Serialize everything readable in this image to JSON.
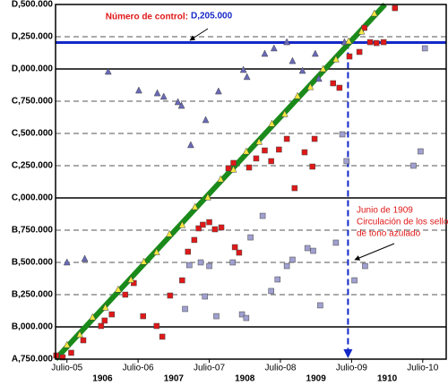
{
  "chart_data": {
    "type": "scatter",
    "xlim": [
      1905.34,
      1910.83
    ],
    "ylim": [
      750000,
      3500000
    ],
    "yticks": [
      {
        "value": 750000,
        "label": "A,750.000"
      },
      {
        "value": 1000000,
        "label": "B,000.000"
      },
      {
        "value": 1250000,
        "label": "B,250.000"
      },
      {
        "value": 1500000,
        "label": "B,500.000"
      },
      {
        "value": 1750000,
        "label": "B,750.000"
      },
      {
        "value": 2000000,
        "label": "C,000.000"
      },
      {
        "value": 2250000,
        "label": "C,250.000"
      },
      {
        "value": 2500000,
        "label": "C,500.000"
      },
      {
        "value": 2750000,
        "label": "C,750.000"
      },
      {
        "value": 3000000,
        "label": "D,000.000"
      },
      {
        "value": 3250000,
        "label": "D,250.000"
      },
      {
        "value": 3500000,
        "label": "D,500.000"
      }
    ],
    "xticks": [
      {
        "value": 1905.5,
        "label": "Julio-05"
      },
      {
        "value": 1906.5,
        "label": "Julio-06"
      },
      {
        "value": 1907.5,
        "label": "Julio-07"
      },
      {
        "value": 1908.5,
        "label": "Julio-08"
      },
      {
        "value": 1909.5,
        "label": "Julio-09"
      },
      {
        "value": 1910.5,
        "label": "Julio-10"
      }
    ],
    "year_labels": [
      1906,
      1907,
      1908,
      1909,
      1910
    ],
    "grid": true,
    "series": [
      {
        "marker": "triangle",
        "color": "#6a6ab8",
        "x": [
          1905.5,
          1905.75,
          1906.08,
          1906.51,
          1906.77,
          1906.86,
          1907.06,
          1907.11,
          1907.24,
          1907.45,
          1907.63,
          1907.98,
          1908.03,
          1908.28,
          1908.41,
          1908.59,
          1908.67,
          1908.81,
          1908.99,
          1909.04,
          1909.4
        ],
        "values": [
          1500000,
          1528000,
          2979000,
          2833000,
          2812000,
          2785000,
          2743000,
          2715000,
          2410000,
          2604000,
          2826000,
          2993000,
          2938000,
          3118000,
          3160000,
          3208000,
          3062000,
          2986000,
          3118000,
          2924000,
          3208000
        ]
      },
      {
        "marker": "square",
        "color": "#e01818",
        "x": [
          1905.35,
          1905.44,
          1905.56,
          1905.73,
          1905.98,
          1906.03,
          1906.13,
          1906.32,
          1906.44,
          1906.57,
          1906.76,
          1906.84,
          1906.95,
          1907.12,
          1907.2,
          1907.29,
          1907.35,
          1907.41,
          1907.5,
          1907.58,
          1907.67,
          1907.86,
          1907.92,
          1907.77,
          1907.84,
          1908.06,
          1908.16,
          1908.28,
          1908.37,
          1908.48,
          1908.59,
          1908.7,
          1908.84,
          1908.95,
          1908.98,
          1909.24,
          1909.33,
          1909.47,
          1909.61,
          1909.68,
          1909.76,
          1909.85,
          1909.95,
          1910.11
        ],
        "values": [
          778000,
          764000,
          799000,
          896000,
          1007000,
          1049000,
          1097000,
          1250000,
          1340000,
          1083000,
          1007000,
          924000,
          1243000,
          1361000,
          1583000,
          1674000,
          1764000,
          1792000,
          1812000,
          1757000,
          1771000,
          1618000,
          1576000,
          2229000,
          2271000,
          2236000,
          2306000,
          2368000,
          2285000,
          2375000,
          2458000,
          2076000,
          2354000,
          2243000,
          2458000,
          2889000,
          2854000,
          3097000,
          3132000,
          3319000,
          3208000,
          3201000,
          3208000,
          3472000
        ]
      },
      {
        "marker": "square",
        "color": "#a0a0d0",
        "x": [
          1907.16,
          1907.22,
          1907.38,
          1907.5,
          1907.44,
          1907.6,
          1907.83,
          1907.96,
          1908.02,
          1908.08,
          1908.25,
          1908.37,
          1908.46,
          1908.59,
          1908.67,
          1908.88,
          1908.96,
          1909.06,
          1909.28,
          1909.37,
          1909.43,
          1909.54,
          1909.69,
          1910.37,
          1910.47,
          1910.53
        ],
        "values": [
          1139000,
          1479000,
          1500000,
          1472000,
          1236000,
          1083000,
          1500000,
          1097000,
          1069000,
          1694000,
          1861000,
          1278000,
          1368000,
          1472000,
          1521000,
          1611000,
          1590000,
          1167000,
          1653000,
          2493000,
          2285000,
          1361000,
          1472000,
          2250000,
          2361000,
          3160000
        ]
      },
      {
        "marker": "triangle",
        "color": "#f2e640",
        "x": [
          1905.5,
          1905.68,
          1905.86,
          1906.04,
          1906.22,
          1906.4,
          1906.58,
          1906.76,
          1906.94,
          1907.12,
          1907.3,
          1907.48,
          1907.66,
          1907.84,
          1908.02,
          1908.2,
          1908.38,
          1908.56,
          1908.74,
          1908.92,
          1909.1,
          1909.28,
          1909.46,
          1909.64,
          1909.82
        ],
        "values": [
          860000,
          940000,
          1075000,
          1150000,
          1290000,
          1365000,
          1505000,
          1580000,
          1720000,
          1790000,
          1930000,
          2005000,
          2145000,
          2220000,
          2360000,
          2435000,
          2575000,
          2650000,
          2790000,
          2860000,
          3000000,
          3075000,
          3215000,
          3290000,
          3430000
        ]
      }
    ],
    "trend": {
      "color": "#1a8a1a",
      "x": [
        1905.34,
        1909.97
      ],
      "values": [
        750000,
        3500000
      ]
    },
    "control": {
      "value": 3205000,
      "color": "#1428c8",
      "label": "Número de control:",
      "value_label": "D,205.000"
    },
    "event": {
      "x": 1909.45,
      "color": "#1428c8",
      "text": [
        "Junio de 1909",
        "Circulación de los sellos",
        "de tono azulado"
      ]
    }
  }
}
